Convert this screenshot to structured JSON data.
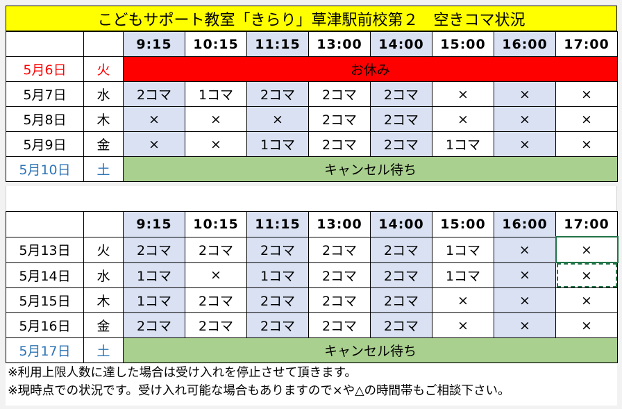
{
  "title": "こどもサポート教室「きらり」草津駅前校第２　空きコマ状況",
  "times": [
    "9:15",
    "10:15",
    "11:15",
    "13:00",
    "14:00",
    "15:00",
    "16:00",
    "17:00"
  ],
  "week1": [
    {
      "date": "5月6日",
      "dow": "火",
      "status": "お休み"
    },
    {
      "date": "5月7日",
      "dow": "水",
      "slots": [
        "2コマ",
        "1コマ",
        "2コマ",
        "2コマ",
        "2コマ",
        "×",
        "×",
        "×"
      ]
    },
    {
      "date": "5月8日",
      "dow": "木",
      "slots": [
        "×",
        "×",
        "×",
        "2コマ",
        "2コマ",
        "×",
        "×",
        "×"
      ]
    },
    {
      "date": "5月9日",
      "dow": "金",
      "slots": [
        "×",
        "×",
        "1コマ",
        "2コマ",
        "2コマ",
        "1コマ",
        "×",
        "×"
      ]
    },
    {
      "date": "5月10日",
      "dow": "土",
      "status": "キャンセル待ち"
    }
  ],
  "week2": [
    {
      "date": "5月13日",
      "dow": "火",
      "slots": [
        "2コマ",
        "2コマ",
        "2コマ",
        "2コマ",
        "2コマ",
        "1コマ",
        "×",
        "×"
      ]
    },
    {
      "date": "5月14日",
      "dow": "水",
      "slots": [
        "1コマ",
        "×",
        "1コマ",
        "2コマ",
        "2コマ",
        "1コマ",
        "×",
        "×"
      ]
    },
    {
      "date": "5月15日",
      "dow": "木",
      "slots": [
        "1コマ",
        "2コマ",
        "2コマ",
        "2コマ",
        "2コマ",
        "×",
        "×",
        "×"
      ]
    },
    {
      "date": "5月16日",
      "dow": "金",
      "slots": [
        "2コマ",
        "2コマ",
        "2コマ",
        "2コマ",
        "2コマ",
        "×",
        "×",
        "×"
      ]
    },
    {
      "date": "5月17日",
      "dow": "土",
      "status": "キャンセル待ち"
    }
  ],
  "notes": [
    "※利用上限人数に達した場合は受け入れを停止させて頂きます。",
    "※現時点での状況です。受け入れ可能な場合もありますので×や△の時間帯もご相談下さい。"
  ],
  "colors": {
    "title_bg": "#ffff00",
    "closed_bg": "#ff0000",
    "waitlist_bg": "#a9d08e",
    "shade": "#d9e1f2",
    "holiday_text": "#ff0000",
    "saturday_text": "#2e75b6"
  }
}
